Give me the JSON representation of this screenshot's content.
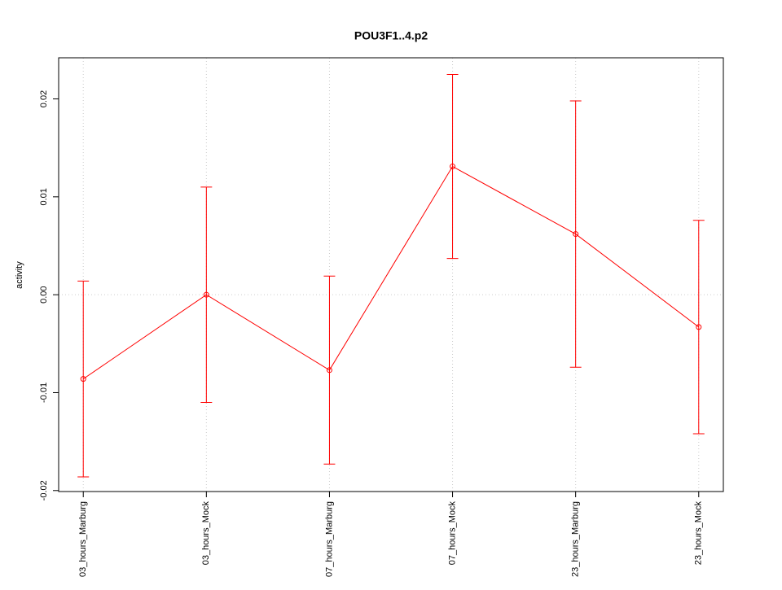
{
  "chart_data": {
    "type": "line",
    "title": "POU3F1..4.p2",
    "y_label": "activity",
    "categories": [
      "03_hours_Marburg",
      "03_hours_Mock",
      "07_hours_Marburg",
      "07_hours_Mock",
      "23_hours_Marburg",
      "23_hours_Mock"
    ],
    "values": [
      -0.0086,
      0.0,
      -0.0077,
      0.0131,
      0.0062,
      -0.0033
    ],
    "errors": [
      0.01,
      0.011,
      0.0096,
      0.0094,
      0.0136,
      0.0109
    ],
    "color": "#ff0000",
    "ylim": [
      -0.0201,
      0.0242
    ],
    "yticks": [
      -0.02,
      -0.01,
      {
        "value": 0,
        "label": "0.00"
      },
      0.01,
      0.02
    ],
    "grid": true,
    "hline": 0
  }
}
